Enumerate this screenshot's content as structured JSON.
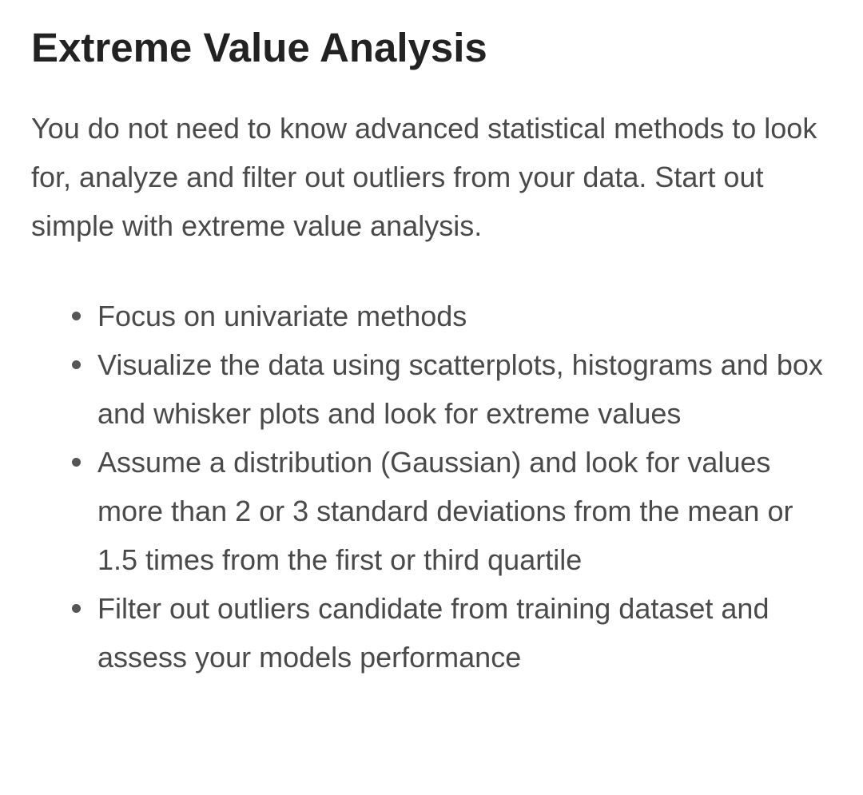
{
  "article": {
    "title": "Extreme Value Analysis",
    "intro": "You do not need to know advanced statistical methods to look for, analyze and filter out outliers from your data. Start out simple with extreme value analysis.",
    "bullets": [
      "Focus on univariate methods",
      "Visualize the data using scatterplots, histograms and box and whisker plots and look for extreme values",
      "Assume a distribution (Gaussian) and look for values more than 2 or 3 standard deviations from the mean or 1.5 times from the first or third quartile",
      "Filter out outliers candidate from training dataset and assess your models performance"
    ]
  }
}
